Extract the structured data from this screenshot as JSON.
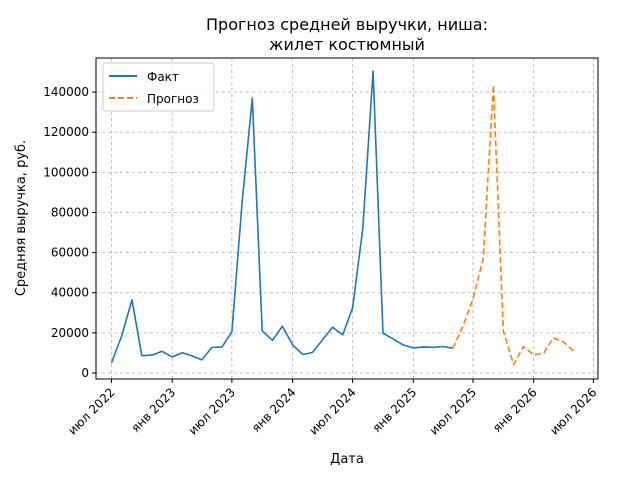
{
  "chart_data": {
    "type": "line",
    "title_line1": "Прогноз средней выручки, ниша:",
    "title_line2": "жилет костюмный",
    "xlabel": "Дата",
    "ylabel": "Средняя выручка, руб.",
    "grid": true,
    "legend_position": "top-left",
    "ylim": [
      -3000,
      157000
    ],
    "xlim": [
      "2022-05-15",
      "2026-07-15"
    ],
    "x_ticks": [
      "2022-07-01",
      "2023-01-01",
      "2023-07-01",
      "2024-01-01",
      "2024-07-01",
      "2025-01-01",
      "2025-07-01",
      "2026-01-01",
      "2026-07-01"
    ],
    "x_tick_labels": [
      "июл 2022",
      "янв 2023",
      "июл 2023",
      "янв 2024",
      "июл 2024",
      "янв 2025",
      "июл 2025",
      "янв 2026",
      "июл 2026"
    ],
    "y_ticks": [
      0,
      20000,
      40000,
      60000,
      80000,
      100000,
      120000,
      140000
    ],
    "y_tick_labels": [
      "0",
      "20000",
      "40000",
      "60000",
      "80000",
      "100000",
      "120000",
      "140000"
    ],
    "series": [
      {
        "name": "Факт",
        "color": "#1f77b4",
        "dash": "solid",
        "x": [
          "2022-07-01",
          "2022-08-01",
          "2022-09-01",
          "2022-10-01",
          "2022-11-01",
          "2022-12-01",
          "2023-01-01",
          "2023-02-01",
          "2023-03-01",
          "2023-04-01",
          "2023-05-01",
          "2023-06-01",
          "2023-07-01",
          "2023-08-01",
          "2023-09-01",
          "2023-10-01",
          "2023-11-01",
          "2023-12-01",
          "2024-01-01",
          "2024-02-01",
          "2024-03-01",
          "2024-04-01",
          "2024-05-01",
          "2024-06-01",
          "2024-07-01",
          "2024-08-01",
          "2024-09-01",
          "2024-10-01",
          "2024-11-01",
          "2024-12-01",
          "2025-01-01",
          "2025-02-01",
          "2025-03-01",
          "2025-04-01",
          "2025-05-01"
        ],
        "y": [
          5000,
          18500,
          36500,
          8600,
          8900,
          10800,
          8000,
          10100,
          8600,
          6500,
          12700,
          13000,
          20500,
          85000,
          137000,
          21000,
          16300,
          23300,
          14000,
          9200,
          10200,
          16600,
          22800,
          19000,
          32500,
          72000,
          150500,
          19800,
          17000,
          14000,
          12500,
          13000,
          12800,
          13200,
          12300
        ]
      },
      {
        "name": "Прогноз",
        "color": "#ff7f0e",
        "dash": "dashed",
        "x": [
          "2025-05-01",
          "2025-06-01",
          "2025-07-01",
          "2025-08-01",
          "2025-09-01",
          "2025-10-01",
          "2025-11-01",
          "2025-12-01",
          "2026-01-01",
          "2026-02-01",
          "2026-03-01",
          "2026-04-01",
          "2026-05-01"
        ],
        "y": [
          12300,
          23500,
          37000,
          57000,
          143500,
          21000,
          4200,
          13200,
          9000,
          10000,
          17500,
          15500,
          11000
        ]
      }
    ]
  }
}
